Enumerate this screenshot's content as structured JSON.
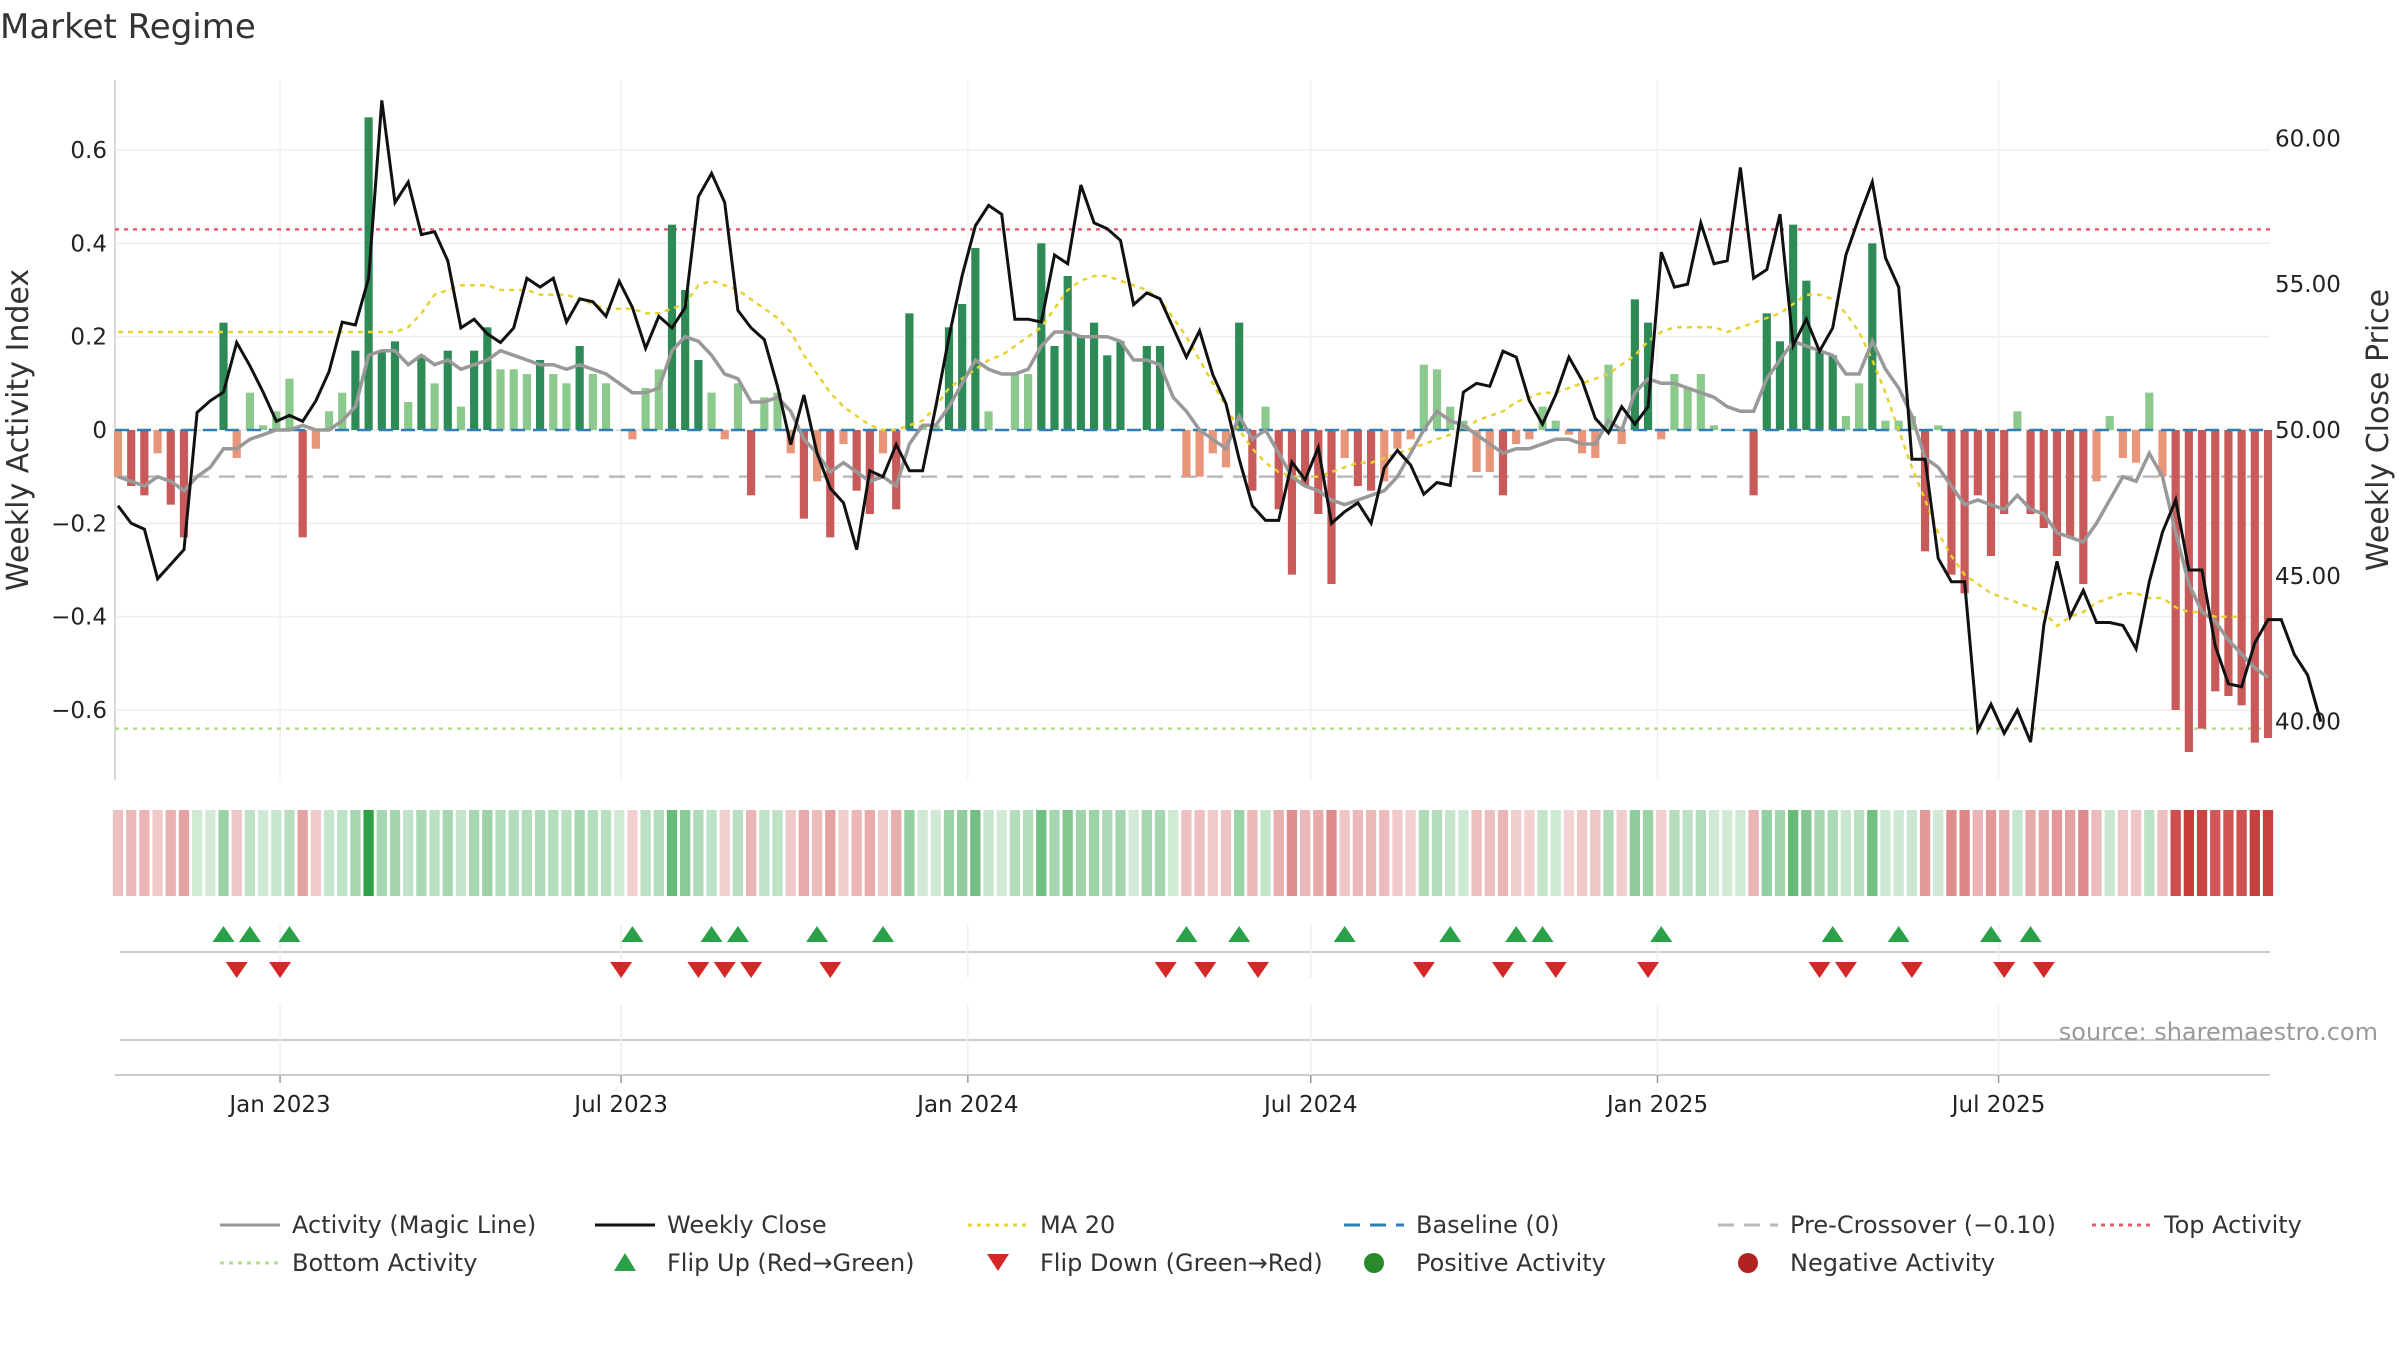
{
  "title": "Market Regime",
  "source": "source: sharemaestro.com",
  "colors": {
    "activity": "#999999",
    "close": "#111111",
    "ma20": "#e6d230",
    "baseline": "#2f7fb5",
    "pre_crossover": "#bbbbbb",
    "top": "#e06070",
    "bottom": "#b6d98a",
    "flip_up": "#2aa048",
    "flip_down": "#d62728",
    "pos_strong": "#2e8b57",
    "pos_light": "#8cc98c",
    "neg_strong": "#c85a5a",
    "neg_light": "#e8957a"
  },
  "chart_data": {
    "type": "bar",
    "x_start": "2022-10-07",
    "x_step_days": 7,
    "xlabel": "",
    "ylabel": "Weekly Activity Index",
    "ylabel_right": "Weekly Close Price",
    "ylim": [
      -0.75,
      0.75
    ],
    "ylim_right": [
      38,
      62
    ],
    "yticks": [
      0.6,
      0.4,
      0.2,
      0,
      -0.2,
      -0.4,
      -0.6
    ],
    "ytick_labels": [
      "0.6",
      "0.4",
      "0.2",
      "0",
      "−0.2",
      "−0.4",
      "−0.6"
    ],
    "yticks_right": [
      60,
      55,
      50,
      45,
      40
    ],
    "ytick_labels_right": [
      "60.00",
      "55.00",
      "50.00",
      "45.00",
      "40.00"
    ],
    "xticks": [
      "2023-01-01",
      "2023-07-01",
      "2024-01-01",
      "2024-07-01",
      "2025-01-01",
      "2025-07-01"
    ],
    "xtick_labels": [
      "Jan 2023",
      "Jul 2023",
      "Jan 2024",
      "Jul 2024",
      "Jan 2025",
      "Jul 2025"
    ],
    "levels": {
      "top": 0.43,
      "bottom": -0.64,
      "pre_crossover": -0.1,
      "baseline": 0
    },
    "series": [
      {
        "name": "Activity Index",
        "values": [
          -0.1,
          -0.12,
          -0.14,
          -0.05,
          -0.16,
          -0.23,
          0.0,
          0.0,
          0.23,
          -0.06,
          0.08,
          0.01,
          0.04,
          0.11,
          -0.23,
          -0.04,
          0.04,
          0.08,
          0.17,
          0.67,
          0.17,
          0.19,
          0.06,
          0.16,
          0.1,
          0.17,
          0.05,
          0.17,
          0.22,
          0.13,
          0.13,
          0.12,
          0.15,
          0.12,
          0.1,
          0.18,
          0.12,
          0.1,
          0.0,
          -0.02,
          0.09,
          0.13,
          0.44,
          0.3,
          0.15,
          0.08,
          -0.02,
          0.1,
          -0.14,
          0.07,
          0.08,
          -0.05,
          -0.19,
          -0.11,
          -0.23,
          -0.03,
          -0.13,
          -0.18,
          -0.05,
          -0.17,
          0.25,
          0.01,
          0.01,
          0.22,
          0.27,
          0.39,
          0.04,
          0.0,
          0.12,
          0.12,
          0.4,
          0.18,
          0.33,
          0.2,
          0.23,
          0.16,
          0.19,
          0.0,
          0.18,
          0.18,
          0.0,
          -0.1,
          -0.1,
          -0.05,
          -0.08,
          0.23,
          -0.13,
          0.05,
          -0.17,
          -0.31,
          -0.12,
          -0.18,
          -0.33,
          -0.06,
          -0.12,
          -0.13,
          -0.11,
          -0.04,
          -0.02,
          0.14,
          0.13,
          0.05,
          0.02,
          -0.09,
          -0.09,
          -0.14,
          -0.03,
          -0.02,
          0.05,
          0.02,
          -0.01,
          -0.05,
          -0.06,
          0.14,
          -0.03,
          0.28,
          0.23,
          -0.02,
          0.12,
          0.09,
          0.12,
          0.01,
          0.0,
          0.0,
          -0.14,
          0.25,
          0.19,
          0.44,
          0.32,
          0.17,
          0.16,
          0.03,
          0.1,
          0.4,
          0.02,
          0.02,
          0.03,
          -0.26,
          0.01,
          -0.31,
          -0.35,
          -0.14,
          -0.27,
          -0.18,
          0.04,
          -0.18,
          -0.21,
          -0.27,
          -0.23,
          -0.33,
          -0.11,
          0.03,
          -0.06,
          -0.07,
          0.08,
          -0.1,
          -0.6,
          -0.69,
          -0.64,
          -0.56,
          -0.57,
          -0.59,
          -0.67,
          -0.66
        ]
      },
      {
        "name": "Activity (Magic Line)",
        "values": [
          -0.1,
          -0.11,
          -0.12,
          -0.1,
          -0.11,
          -0.13,
          -0.1,
          -0.08,
          -0.04,
          -0.04,
          -0.02,
          -0.01,
          0.0,
          0.0,
          0.01,
          0.0,
          0.0,
          0.02,
          0.05,
          0.16,
          0.17,
          0.17,
          0.14,
          0.16,
          0.14,
          0.15,
          0.13,
          0.14,
          0.15,
          0.17,
          0.16,
          0.15,
          0.14,
          0.14,
          0.13,
          0.14,
          0.13,
          0.12,
          0.1,
          0.08,
          0.08,
          0.09,
          0.17,
          0.2,
          0.19,
          0.16,
          0.12,
          0.11,
          0.06,
          0.06,
          0.07,
          0.04,
          -0.02,
          -0.05,
          -0.09,
          -0.07,
          -0.09,
          -0.11,
          -0.1,
          -0.12,
          -0.03,
          0.01,
          0.01,
          0.05,
          0.1,
          0.15,
          0.13,
          0.12,
          0.12,
          0.13,
          0.18,
          0.21,
          0.21,
          0.2,
          0.2,
          0.2,
          0.19,
          0.15,
          0.15,
          0.14,
          0.07,
          0.04,
          0.0,
          -0.02,
          -0.04,
          0.03,
          -0.02,
          0.0,
          -0.05,
          -0.1,
          -0.12,
          -0.13,
          -0.15,
          -0.16,
          -0.15,
          -0.14,
          -0.13,
          -0.1,
          -0.05,
          0.0,
          0.04,
          0.02,
          0.01,
          -0.01,
          -0.03,
          -0.05,
          -0.04,
          -0.04,
          -0.03,
          -0.02,
          -0.02,
          -0.03,
          -0.03,
          0.02,
          0.0,
          0.08,
          0.11,
          0.1,
          0.1,
          0.09,
          0.08,
          0.07,
          0.05,
          0.04,
          0.04,
          0.11,
          0.15,
          0.19,
          0.18,
          0.17,
          0.16,
          0.12,
          0.12,
          0.19,
          0.13,
          0.09,
          0.03,
          -0.06,
          -0.08,
          -0.12,
          -0.16,
          -0.15,
          -0.16,
          -0.17,
          -0.14,
          -0.17,
          -0.18,
          -0.22,
          -0.23,
          -0.24,
          -0.2,
          -0.15,
          -0.1,
          -0.11,
          -0.05,
          -0.1,
          -0.22,
          -0.33,
          -0.39,
          -0.41,
          -0.45,
          -0.48,
          -0.51,
          -0.53
        ]
      },
      {
        "name": "Weekly Close",
        "values": [
          47.4,
          46.8,
          46.6,
          44.9,
          45.4,
          45.9,
          50.6,
          51.0,
          51.3,
          53.0,
          52.2,
          51.3,
          50.3,
          50.5,
          50.3,
          51.0,
          52.0,
          53.7,
          53.6,
          55.2,
          61.3,
          57.8,
          58.5,
          56.7,
          56.8,
          55.8,
          53.5,
          53.8,
          53.3,
          53.0,
          53.5,
          55.2,
          54.9,
          55.2,
          53.7,
          54.5,
          54.4,
          53.9,
          55.1,
          54.2,
          52.8,
          53.9,
          53.5,
          54.2,
          58.0,
          58.8,
          57.8,
          54.1,
          53.5,
          53.1,
          51.5,
          49.5,
          51.2,
          49.2,
          48.0,
          47.5,
          45.9,
          48.6,
          48.4,
          49.5,
          48.6,
          48.6,
          50.8,
          53.2,
          55.3,
          57.0,
          57.7,
          57.4,
          53.8,
          53.8,
          53.7,
          56.0,
          55.7,
          58.4,
          57.1,
          56.9,
          56.5,
          54.3,
          54.7,
          54.5,
          53.5,
          52.5,
          53.4,
          51.9,
          50.9,
          49.0,
          47.4,
          46.9,
          46.9,
          48.9,
          48.3,
          49.4,
          46.8,
          47.2,
          47.5,
          46.8,
          48.7,
          49.3,
          48.8,
          47.8,
          48.2,
          48.1,
          51.3,
          51.6,
          51.5,
          52.7,
          52.5,
          51.0,
          50.2,
          51.2,
          52.5,
          51.7,
          50.4,
          49.9,
          50.8,
          50.2,
          50.8,
          56.1,
          54.9,
          55.0,
          57.1,
          55.7,
          55.8,
          59.0,
          55.2,
          55.5,
          57.4,
          52.9,
          53.8,
          52.7,
          53.5,
          56.0,
          57.3,
          58.5,
          55.9,
          54.9,
          49.0,
          49.0,
          45.6,
          44.8,
          44.8,
          39.7,
          40.6,
          39.6,
          40.4,
          39.3,
          43.3,
          45.5,
          43.6,
          44.5,
          43.4,
          43.4,
          43.3,
          42.5,
          44.8,
          46.5,
          47.6,
          45.2,
          45.2,
          42.6,
          41.3,
          41.2,
          42.7,
          43.5,
          43.5,
          42.3,
          41.6,
          40.0
        ]
      },
      {
        "name": "MA 20",
        "values": [
          0.21,
          0.21,
          0.21,
          0.21,
          0.21,
          0.21,
          0.21,
          0.21,
          0.21,
          0.21,
          0.21,
          0.21,
          0.21,
          0.21,
          0.21,
          0.21,
          0.21,
          0.21,
          0.21,
          0.21,
          0.21,
          0.21,
          0.22,
          0.25,
          0.29,
          0.3,
          0.31,
          0.31,
          0.31,
          0.3,
          0.3,
          0.3,
          0.29,
          0.29,
          0.29,
          0.28,
          0.27,
          0.26,
          0.26,
          0.26,
          0.25,
          0.25,
          0.26,
          0.27,
          0.31,
          0.32,
          0.31,
          0.3,
          0.28,
          0.26,
          0.24,
          0.21,
          0.16,
          0.12,
          0.08,
          0.05,
          0.03,
          0.01,
          0.0,
          0.0,
          0.01,
          0.02,
          0.05,
          0.09,
          0.11,
          0.13,
          0.15,
          0.16,
          0.18,
          0.2,
          0.22,
          0.26,
          0.3,
          0.32,
          0.33,
          0.33,
          0.32,
          0.31,
          0.3,
          0.28,
          0.24,
          0.2,
          0.15,
          0.1,
          0.05,
          0.0,
          -0.04,
          -0.07,
          -0.09,
          -0.1,
          -0.1,
          -0.1,
          -0.09,
          -0.08,
          -0.07,
          -0.07,
          -0.06,
          -0.05,
          -0.04,
          -0.03,
          -0.02,
          -0.01,
          0.0,
          0.02,
          0.03,
          0.04,
          0.06,
          0.07,
          0.08,
          0.08,
          0.09,
          0.1,
          0.11,
          0.12,
          0.14,
          0.16,
          0.19,
          0.21,
          0.22,
          0.22,
          0.22,
          0.22,
          0.21,
          0.22,
          0.23,
          0.24,
          0.25,
          0.27,
          0.29,
          0.29,
          0.28,
          0.25,
          0.21,
          0.15,
          0.08,
          0.0,
          -0.08,
          -0.15,
          -0.22,
          -0.27,
          -0.31,
          -0.33,
          -0.35,
          -0.36,
          -0.37,
          -0.38,
          -0.39,
          -0.42,
          -0.4,
          -0.39,
          -0.37,
          -0.36,
          -0.35,
          -0.35,
          -0.36,
          -0.36,
          -0.38,
          -0.39,
          -0.39,
          -0.4,
          -0.4,
          -0.4
        ]
      }
    ],
    "flips_up": [
      "2022-12-02",
      "2022-12-16",
      "2023-01-06",
      "2023-07-07",
      "2023-08-18",
      "2023-09-01",
      "2023-10-13",
      "2023-11-17",
      "2024-04-26",
      "2024-05-24",
      "2024-07-19",
      "2024-09-13",
      "2024-10-18",
      "2024-11-01",
      "2025-01-03",
      "2025-04-04",
      "2025-05-09",
      "2025-06-27",
      "2025-07-18"
    ],
    "flips_down": [
      "2022-12-09",
      "2023-01-01",
      "2023-07-01",
      "2023-08-11",
      "2023-08-25",
      "2023-09-08",
      "2023-10-20",
      "2024-04-15",
      "2024-05-06",
      "2024-06-03",
      "2024-08-30",
      "2024-10-11",
      "2024-11-08",
      "2024-12-27",
      "2025-03-28",
      "2025-04-11",
      "2025-05-16",
      "2025-07-04",
      "2025-07-25"
    ]
  },
  "legend": [
    {
      "label": "Activity (Magic Line)",
      "kind": "line",
      "color": "#999999"
    },
    {
      "label": "Weekly Close",
      "kind": "line",
      "color": "#111111"
    },
    {
      "label": "MA 20",
      "kind": "dotted",
      "color": "#e6d230"
    },
    {
      "label": "Baseline (0)",
      "kind": "dashed",
      "color": "#2f7fb5"
    },
    {
      "label": "Pre-Crossover (−0.10)",
      "kind": "dashed",
      "color": "#bbbbbb"
    },
    {
      "label": "Top Activity",
      "kind": "dotted",
      "color": "#e06070"
    },
    {
      "label": "Bottom Activity",
      "kind": "dotted",
      "color": "#b6d98a"
    },
    {
      "label": "Flip Up (Red→Green)",
      "kind": "tri-up",
      "color": "#2aa048"
    },
    {
      "label": "Flip Down (Green→Red)",
      "kind": "tri-down",
      "color": "#d62728"
    },
    {
      "label": "Positive Activity",
      "kind": "dot",
      "color": "#2a8a2a"
    },
    {
      "label": "Negative Activity",
      "kind": "dot",
      "color": "#b22222"
    }
  ]
}
